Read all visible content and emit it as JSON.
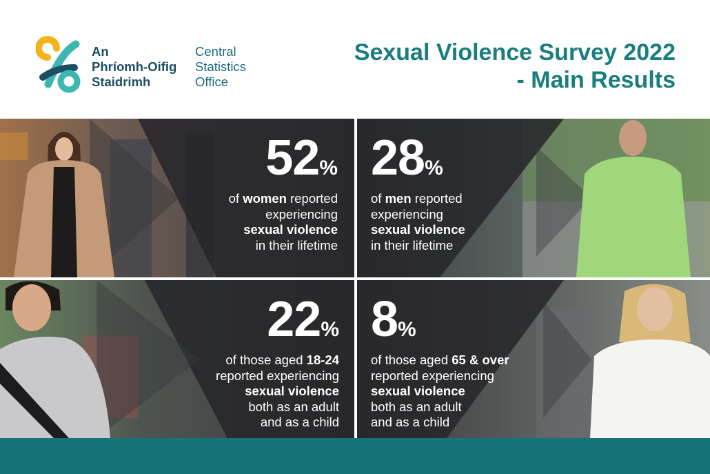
{
  "logo": {
    "irish_lines": [
      "An",
      "Phríomh-Oifig",
      "Staidrimh"
    ],
    "english_lines": [
      "Central",
      "Statistics",
      "Office"
    ],
    "colors": {
      "yellow": "#f3b41b",
      "teal": "#3fb7b1",
      "navy": "#1e4d64"
    }
  },
  "title": {
    "line1": "Sexual Violence Survey 2022",
    "line2": "- Main Results",
    "color": "#1a7d7e"
  },
  "panels": [
    {
      "value": "52",
      "unit": "%",
      "lines": [
        {
          "pre": "of ",
          "bold": "women",
          "post": " reported"
        },
        {
          "pre": "experiencing",
          "bold": "",
          "post": ""
        },
        {
          "pre": "",
          "bold": "sexual violence",
          "post": ""
        },
        {
          "pre": "in their lifetime",
          "bold": "",
          "post": ""
        }
      ]
    },
    {
      "value": "28",
      "unit": "%",
      "lines": [
        {
          "pre": "of ",
          "bold": "men",
          "post": " reported"
        },
        {
          "pre": "experiencing",
          "bold": "",
          "post": ""
        },
        {
          "pre": "",
          "bold": "sexual violence",
          "post": ""
        },
        {
          "pre": "in their lifetime",
          "bold": "",
          "post": ""
        }
      ]
    },
    {
      "value": "22",
      "unit": "%",
      "lines": [
        {
          "pre": "of those aged ",
          "bold": "18-24",
          "post": ""
        },
        {
          "pre": "reported experiencing",
          "bold": "",
          "post": ""
        },
        {
          "pre": "",
          "bold": "sexual violence",
          "post": ""
        },
        {
          "pre": "both as an adult",
          "bold": "",
          "post": ""
        },
        {
          "pre": "and as a child",
          "bold": "",
          "post": ""
        }
      ]
    },
    {
      "value": "8",
      "unit": "%",
      "lines": [
        {
          "pre": "of those aged ",
          "bold": "65 & over",
          "post": ""
        },
        {
          "pre": "reported experiencing",
          "bold": "",
          "post": ""
        },
        {
          "pre": "",
          "bold": "sexual violence",
          "post": ""
        },
        {
          "pre": "both as an adult",
          "bold": "",
          "post": ""
        },
        {
          "pre": "and as a child",
          "bold": "",
          "post": ""
        }
      ]
    }
  ],
  "footer_color": "#157478"
}
